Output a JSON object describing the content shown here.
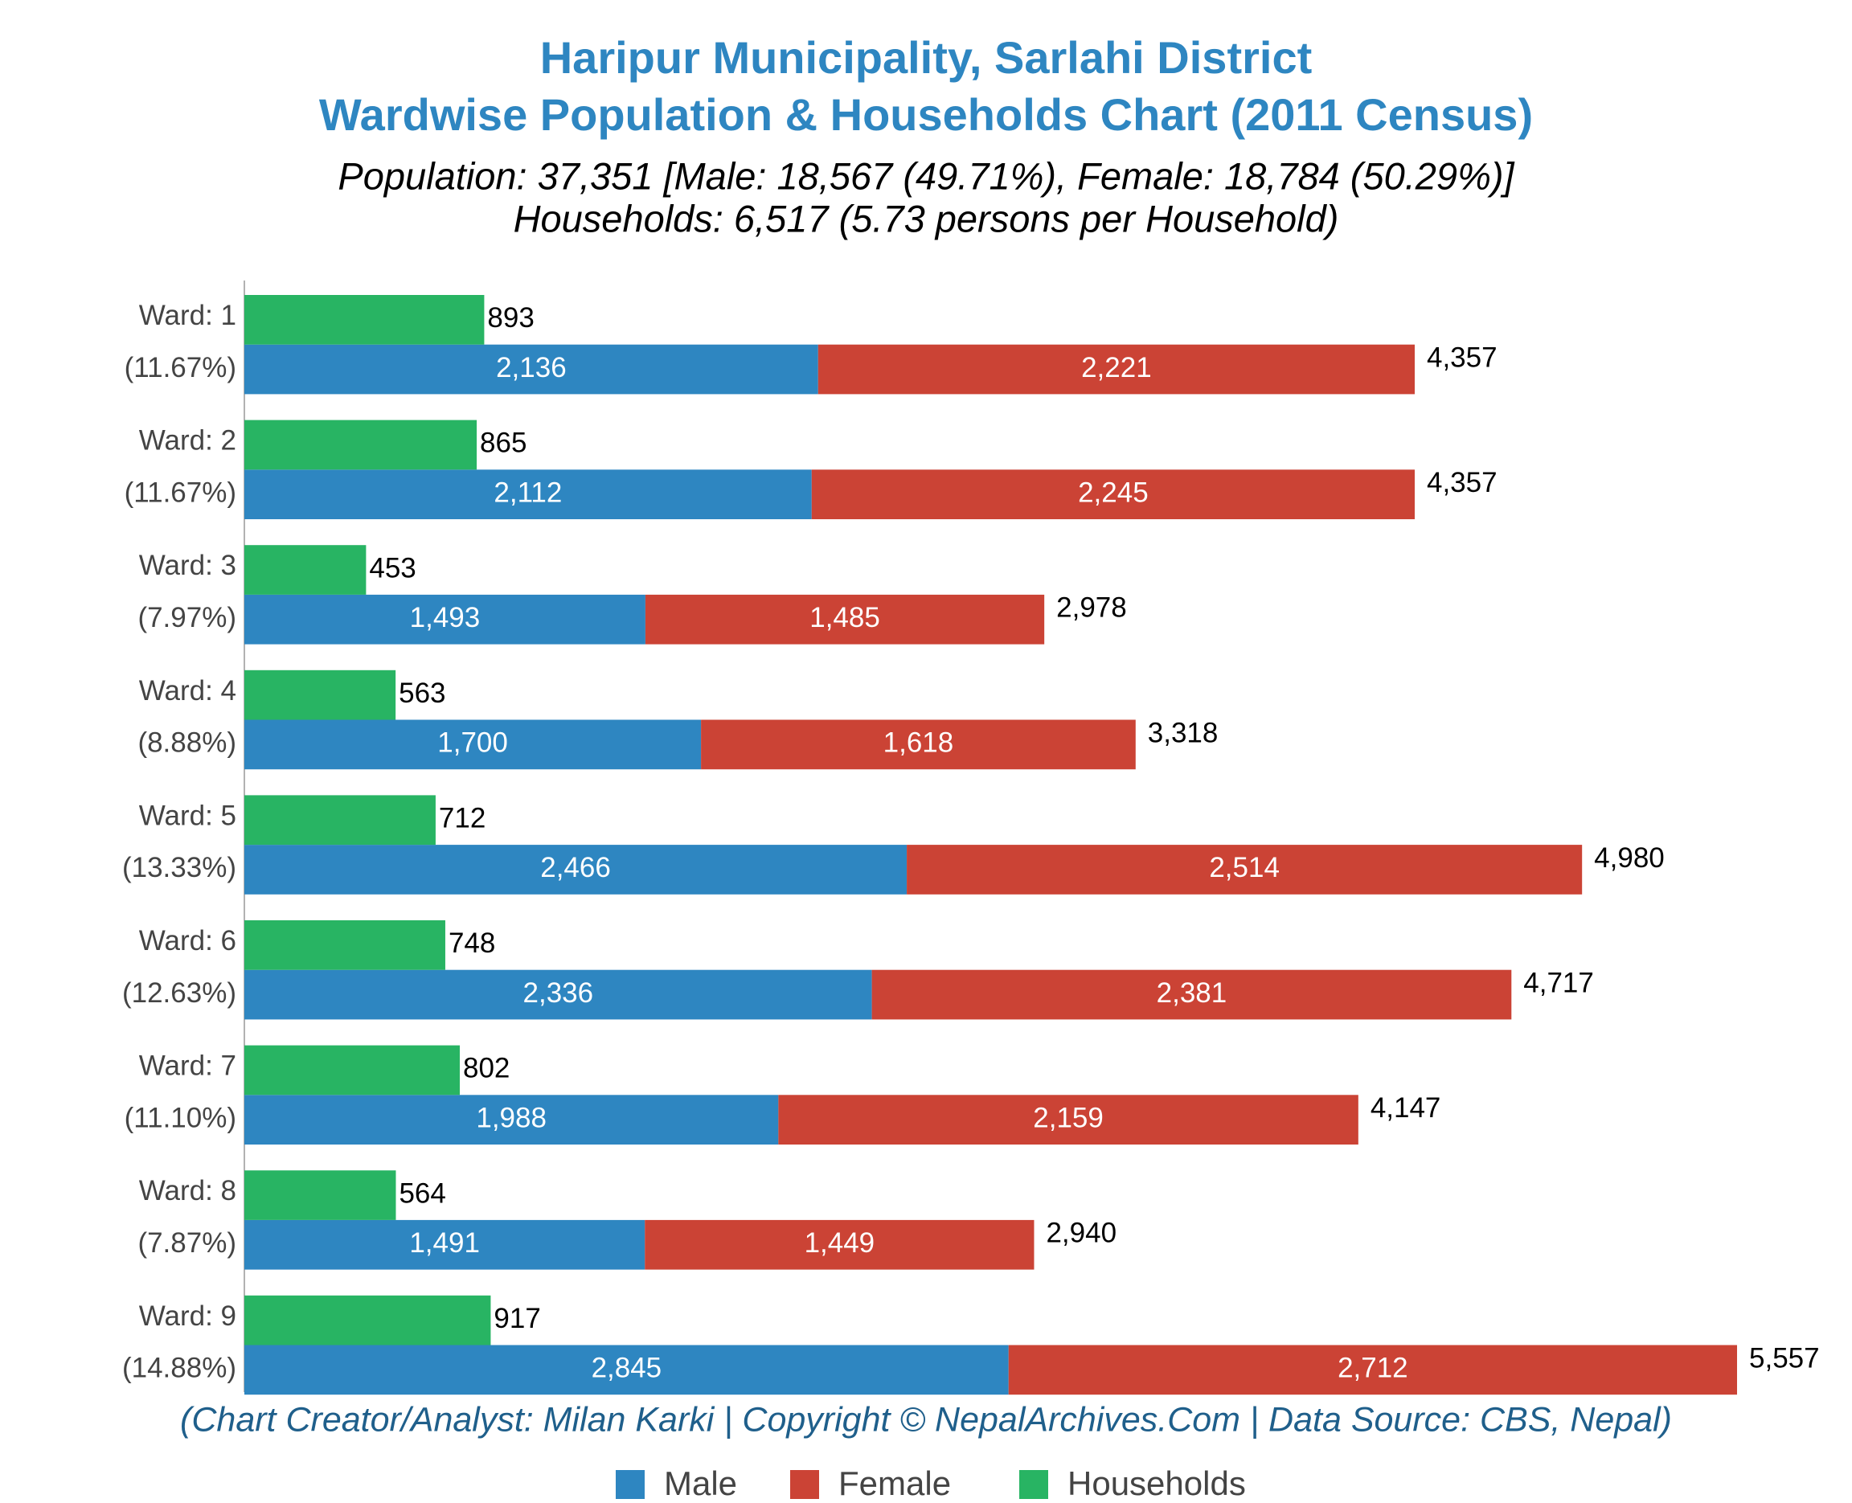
{
  "chart_data": {
    "type": "bar",
    "orientation": "horizontal",
    "title": "Haripur Municipality, Sarlahi District",
    "title_line2": "Wardwise Population & Households Chart (2011 Census)",
    "subtitle": "Population: 37,351 [Male: 18,567 (49.71%), Female: 18,784 (50.29%)]",
    "subtitle_line2": "Households: 6,517 (5.73 persons per Household)",
    "footer": "(Chart Creator/Analyst: Milan Karki | Copyright © NepalArchives.Com | Data Source: CBS, Nepal)",
    "categories": [
      "Ward: 1",
      "Ward: 2",
      "Ward: 3",
      "Ward: 4",
      "Ward: 5",
      "Ward: 6",
      "Ward: 7",
      "Ward: 8",
      "Ward: 9"
    ],
    "category_shares": [
      "(11.67%)",
      "(11.67%)",
      "(7.97%)",
      "(8.88%)",
      "(13.33%)",
      "(12.63%)",
      "(11.10%)",
      "(7.87%)",
      "(14.88%)"
    ],
    "series": [
      {
        "name": "Male",
        "color": "#2e86c1",
        "stack": "population",
        "values": [
          2136,
          2112,
          1493,
          1700,
          2466,
          2336,
          1988,
          1491,
          2845
        ],
        "value_labels": [
          "2,136",
          "2,112",
          "1,493",
          "1,700",
          "2,466",
          "2,336",
          "1,988",
          "1,491",
          "2,845"
        ]
      },
      {
        "name": "Female",
        "color": "#cb4335",
        "stack": "population",
        "values": [
          2221,
          2245,
          1485,
          1618,
          2514,
          2381,
          2159,
          1449,
          2712
        ],
        "value_labels": [
          "2,221",
          "2,245",
          "1,485",
          "1,618",
          "2,514",
          "2,381",
          "2,159",
          "1,449",
          "2,712"
        ]
      },
      {
        "name": "Households",
        "color": "#28b463",
        "stack": "households",
        "values": [
          893,
          865,
          453,
          563,
          712,
          748,
          802,
          564,
          917
        ]
      }
    ],
    "totals": [
      4357,
      4357,
      2978,
      3318,
      4980,
      4717,
      4147,
      2940,
      5557
    ],
    "total_labels": [
      "4,357",
      "4,357",
      "2,978",
      "3,318",
      "4,980",
      "4,717",
      "4,147",
      "2,940",
      "5,557"
    ],
    "xlim": [
      0,
      5557
    ],
    "legend": "bottom"
  }
}
